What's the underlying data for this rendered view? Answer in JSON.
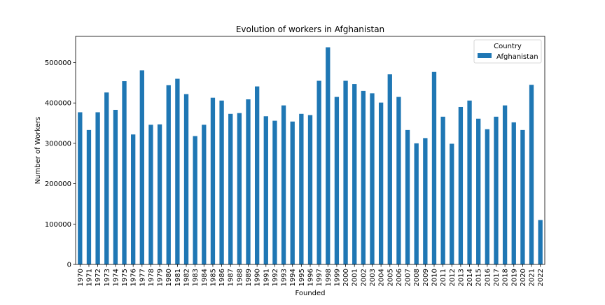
{
  "chart_data": {
    "type": "bar",
    "title": "Evolution of workers in Afghanistan",
    "xlabel": "Founded",
    "ylabel": "Number of Workers",
    "ylim": [
      0,
      565000
    ],
    "yticks": [
      0,
      100000,
      200000,
      300000,
      400000,
      500000
    ],
    "grid": false,
    "legend": {
      "title": "Country",
      "placement": "top-right"
    },
    "categories": [
      "1970",
      "1971",
      "1972",
      "1973",
      "1974",
      "1975",
      "1976",
      "1977",
      "1978",
      "1979",
      "1980",
      "1981",
      "1982",
      "1983",
      "1984",
      "1985",
      "1986",
      "1987",
      "1988",
      "1989",
      "1990",
      "1991",
      "1992",
      "1993",
      "1994",
      "1995",
      "1996",
      "1997",
      "1998",
      "1999",
      "2000",
      "2001",
      "2002",
      "2003",
      "2004",
      "2005",
      "2006",
      "2007",
      "2008",
      "2009",
      "2010",
      "2011",
      "2012",
      "2013",
      "2014",
      "2015",
      "2016",
      "2017",
      "2018",
      "2019",
      "2020",
      "2021",
      "2022"
    ],
    "series": [
      {
        "name": "Afghanistan",
        "color": "#1f77b4",
        "values": [
          377000,
          333000,
          377000,
          426000,
          383000,
          454000,
          322000,
          481000,
          346000,
          347000,
          444000,
          460000,
          422000,
          318000,
          346000,
          413000,
          406000,
          373000,
          375000,
          409000,
          441000,
          367000,
          356000,
          394000,
          354000,
          373000,
          370000,
          455000,
          538000,
          415000,
          455000,
          447000,
          430000,
          424000,
          401000,
          471000,
          415000,
          333000,
          300000,
          313000,
          477000,
          366000,
          299000,
          390000,
          406000,
          361000,
          335000,
          366000,
          394000,
          352000,
          333000,
          445000,
          110000
        ]
      }
    ]
  }
}
